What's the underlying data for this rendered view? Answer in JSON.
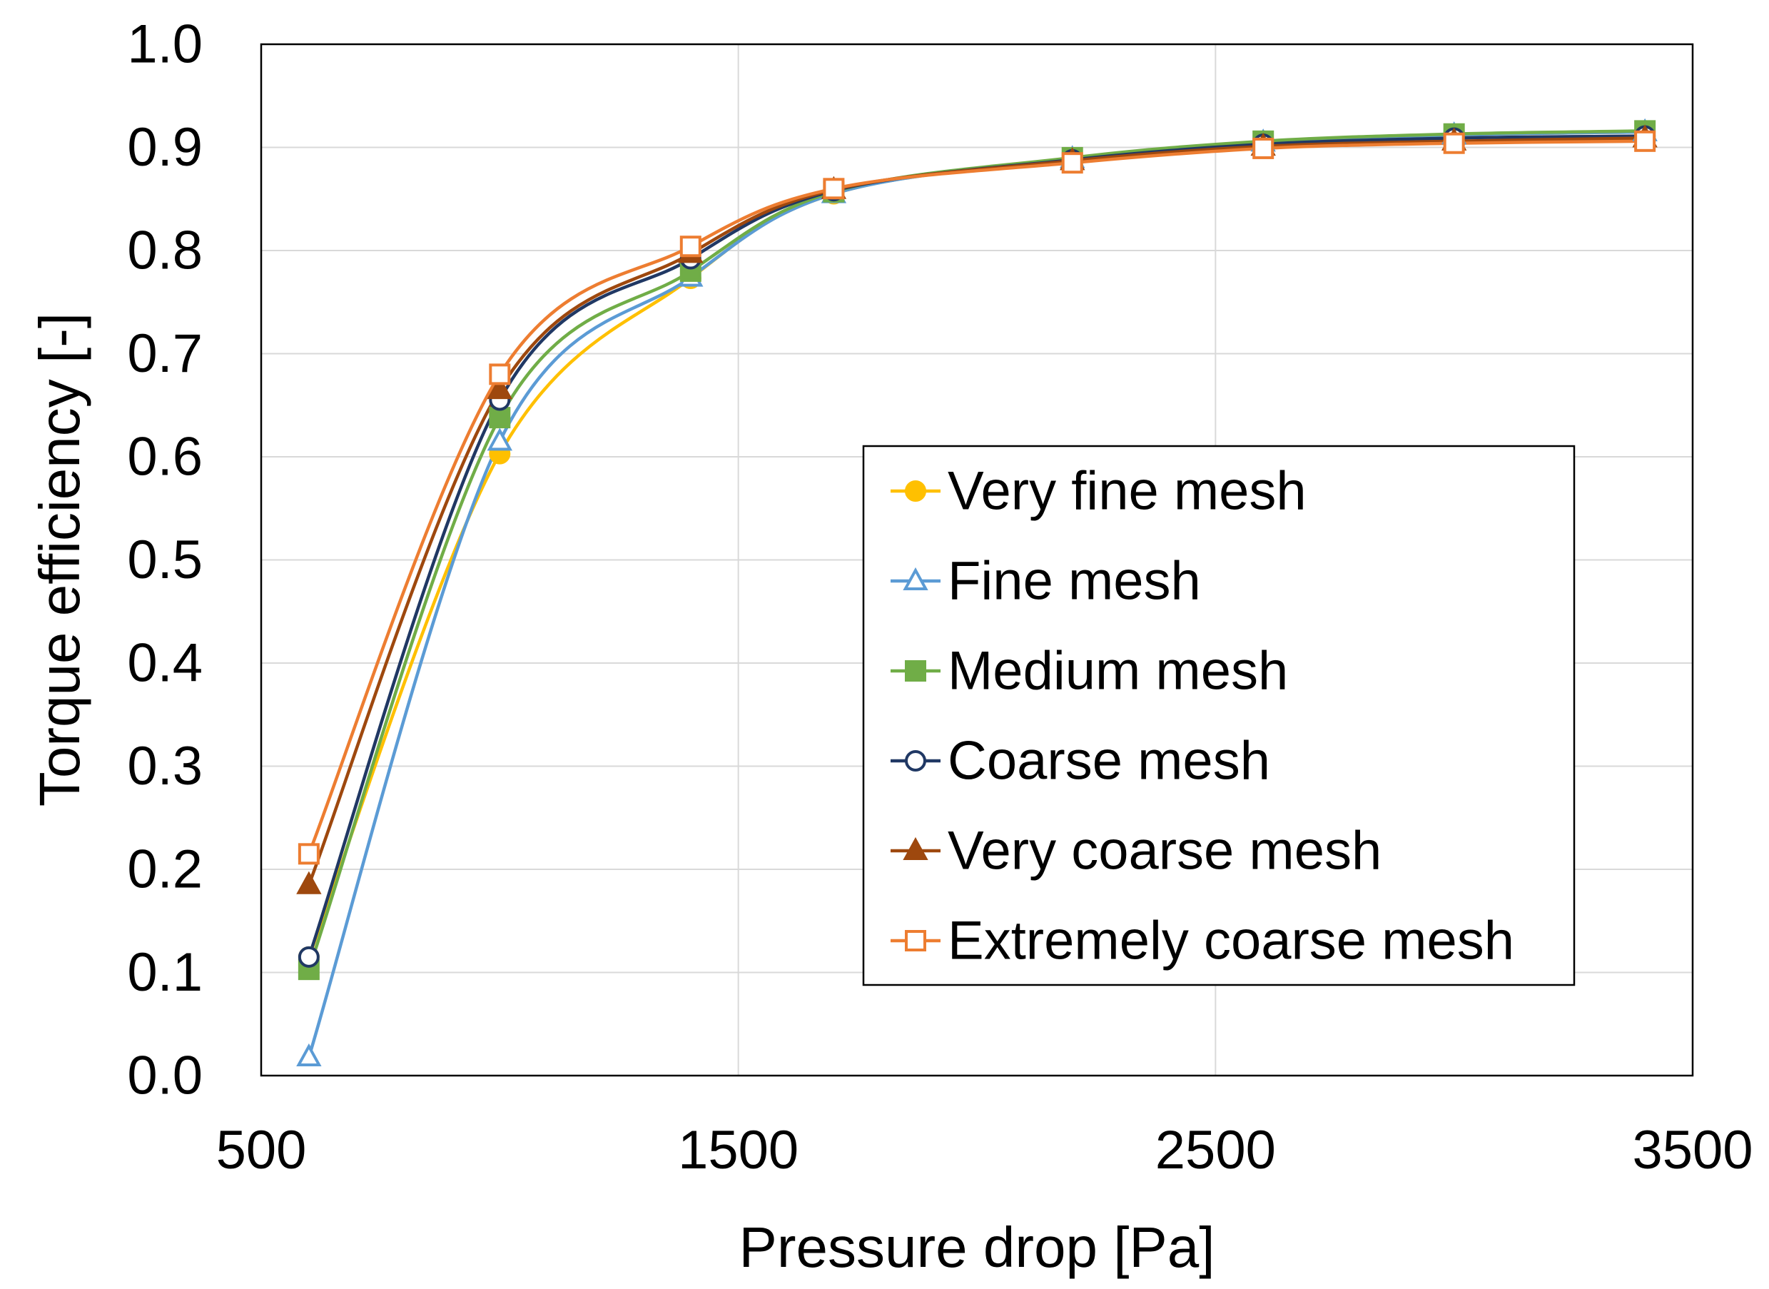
{
  "chart_data": {
    "type": "line",
    "title": "",
    "xlabel": "Pressure drop [Pa]",
    "ylabel": "Torque efficiency [-]",
    "xlim": [
      500,
      3500
    ],
    "ylim": [
      0.0,
      1.0
    ],
    "x_ticks": [
      500,
      1500,
      2500,
      3500
    ],
    "x_tick_labels": [
      "500",
      "1500",
      "2500",
      "3500"
    ],
    "y_ticks": [
      0.0,
      0.1,
      0.2,
      0.3,
      0.4,
      0.5,
      0.6,
      0.7,
      0.8,
      0.9,
      1.0
    ],
    "y_tick_labels": [
      "0.0",
      "0.1",
      "0.2",
      "0.3",
      "0.4",
      "0.5",
      "0.6",
      "0.7",
      "0.8",
      "0.9",
      "1.0"
    ],
    "grid": true,
    "legend_position": "center-right",
    "x": [
      600,
      1000,
      1400,
      1700,
      2200,
      2600,
      3000,
      3400
    ],
    "series": [
      {
        "name": "Very fine mesh",
        "color": "#FFC000",
        "marker": "circle-filled",
        "values": [
          0.115,
          0.603,
          0.773,
          0.855,
          0.889,
          0.905,
          0.912,
          0.915
        ]
      },
      {
        "name": "Fine mesh",
        "color": "#5B9BD5",
        "marker": "triangle-open",
        "values": [
          0.018,
          0.615,
          0.774,
          0.855,
          0.889,
          0.905,
          0.912,
          0.915
        ]
      },
      {
        "name": "Medium mesh",
        "color": "#70AD47",
        "marker": "square-filled",
        "values": [
          0.103,
          0.638,
          0.78,
          0.857,
          0.89,
          0.906,
          0.913,
          0.916
        ]
      },
      {
        "name": "Coarse mesh",
        "color": "#203864",
        "marker": "circle-open",
        "values": [
          0.115,
          0.655,
          0.792,
          0.858,
          0.888,
          0.903,
          0.909,
          0.911
        ]
      },
      {
        "name": "Very coarse mesh",
        "color": "#9E480E",
        "marker": "triangle-filled",
        "values": [
          0.185,
          0.665,
          0.797,
          0.859,
          0.887,
          0.901,
          0.906,
          0.909
        ]
      },
      {
        "name": "Extremely coarse mesh",
        "color": "#ED7D31",
        "marker": "square-open",
        "values": [
          0.215,
          0.68,
          0.804,
          0.86,
          0.885,
          0.899,
          0.904,
          0.906
        ]
      }
    ]
  }
}
